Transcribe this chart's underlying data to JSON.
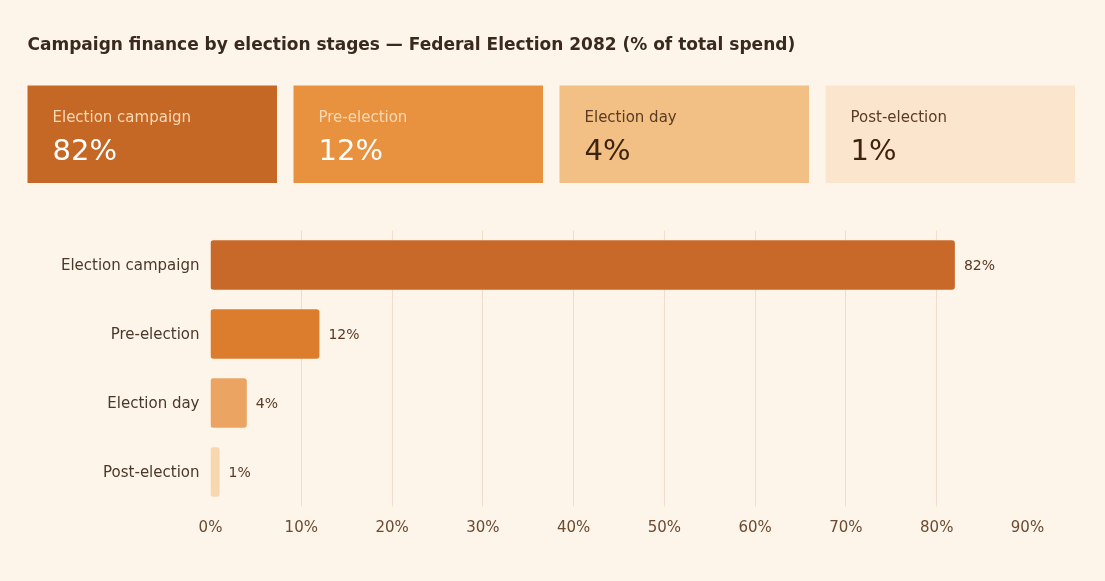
{
  "chart_data": [
    {
      "type": "other",
      "title": "Campaign finance by election stages — Federal Election 2082 (% of total spend)",
      "categories": [
        "Election campaign",
        "Pre-election",
        "Election day",
        "Post-election"
      ],
      "values": [
        82,
        12,
        4,
        1
      ],
      "value_labels": [
        "82%",
        "12%",
        "4%",
        "1%"
      ],
      "colors": [
        "#c66825",
        "#e8923f",
        "#f2c084",
        "#fbe6cd"
      ]
    },
    {
      "type": "bar",
      "orientation": "horizontal",
      "categories": [
        "Election campaign",
        "Pre-election",
        "Election day",
        "Post-election"
      ],
      "values": [
        82,
        12,
        4,
        1
      ],
      "colors": [
        "#c8692a",
        "#dc7d2e",
        "#eba462",
        "#f7d6b0"
      ],
      "value_labels": [
        "82%",
        "12%",
        "4%",
        "1%"
      ],
      "xlim": [
        0,
        90
      ],
      "xticks": [
        {
          "value": 0,
          "label": "0%"
        },
        {
          "value": 10,
          "label": "10%"
        },
        {
          "value": 20,
          "label": "20%"
        },
        {
          "value": 30,
          "label": "30%"
        },
        {
          "value": 40,
          "label": "40%"
        },
        {
          "value": 50,
          "label": "50%"
        },
        {
          "value": 60,
          "label": "60%"
        },
        {
          "value": 70,
          "label": "70%"
        },
        {
          "value": 80,
          "label": "80%"
        },
        {
          "value": 90,
          "label": "90%"
        }
      ],
      "grid": "x"
    }
  ]
}
